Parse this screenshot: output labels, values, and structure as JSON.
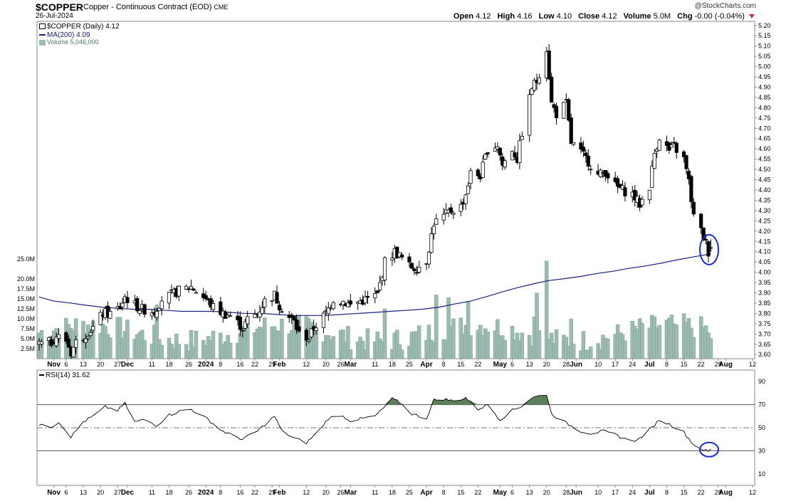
{
  "header": {
    "symbol": "$COPPER",
    "name": "Copper - Continuous Contract (EOD)",
    "exchange": "CME",
    "date": "26-Jul-2024",
    "brand": "@StockCharts.com",
    "open_label": "Open",
    "open": "4.12",
    "high_label": "High",
    "high": "4.16",
    "low_label": "Low",
    "low": "4.10",
    "close_label": "Close",
    "close": "4.12",
    "volume_label": "Volume",
    "volume": "5.0M",
    "chg_label": "Chg",
    "chg": "-0.00 (-0.04%)"
  },
  "legend": {
    "price": "$COPPER (Daily) 4.12",
    "ma": "MA(200) 4.09",
    "volume": "Volume 5,046,000",
    "rsi": "RSI(14) 31.62"
  },
  "colors": {
    "candle": "#000000",
    "ma": "#1a237e",
    "volume": "#9dbcb0",
    "volume_edge": "#6f8f83",
    "rsi_line": "#000000",
    "rsi_fill": "#5d7f5c",
    "highlight": "#1a2bd6"
  },
  "chart_data": [
    {
      "type": "candlestick",
      "title": "$COPPER (Daily) 4.12",
      "x_tick_labels": [
        "Nov",
        "6",
        "13",
        "20",
        "27",
        "Dec",
        "11",
        "18",
        "26",
        "2024",
        "8",
        "16",
        "22",
        "29",
        "Feb",
        "12",
        "20",
        "26",
        "Mar",
        "11",
        "18",
        "25",
        "Apr",
        "8",
        "15",
        "22",
        "May",
        "6",
        "13",
        "20",
        "28",
        "Jun",
        "10",
        "17",
        "24",
        "Jul",
        "8",
        "15",
        "22",
        "29",
        "Aug",
        "12"
      ],
      "y_ticks": [
        "5.20",
        "5.15",
        "5.10",
        "5.05",
        "5.00",
        "4.95",
        "4.90",
        "4.85",
        "4.80",
        "4.75",
        "4.70",
        "4.65",
        "4.60",
        "4.55",
        "4.50",
        "4.45",
        "4.40",
        "4.35",
        "4.30",
        "4.25",
        "4.20",
        "4.15",
        "4.10",
        "4.05",
        "4.00",
        "3.95",
        "3.90",
        "3.85",
        "3.80",
        "3.75",
        "3.70",
        "3.65",
        "3.60"
      ],
      "ylim": [
        3.58,
        5.22
      ],
      "series": [
        {
          "name": "MA(200)",
          "x_start": "2023-10-26",
          "x_end": "2024-07-26",
          "values": [
            3.88,
            3.86,
            3.85,
            3.84,
            3.83,
            3.825,
            3.82,
            3.82,
            3.815,
            3.81,
            3.81,
            3.81,
            3.805,
            3.8,
            3.8,
            3.795,
            3.79,
            3.79,
            3.79,
            3.795,
            3.8,
            3.805,
            3.81,
            3.815,
            3.82,
            3.83,
            3.845,
            3.86,
            3.88,
            3.905,
            3.925,
            3.945,
            3.96,
            3.97,
            3.98,
            3.995,
            4.005,
            4.02,
            4.03,
            4.045,
            4.06,
            4.075,
            4.09
          ]
        }
      ],
      "close_anchors": [
        [
          "2023-10-26",
          3.65
        ],
        [
          "2023-10-31",
          3.66
        ],
        [
          "2023-11-02",
          3.69
        ],
        [
          "2023-11-06",
          3.67
        ],
        [
          "2023-11-08",
          3.61
        ],
        [
          "2023-11-10",
          3.66
        ],
        [
          "2023-11-14",
          3.7
        ],
        [
          "2023-11-17",
          3.73
        ],
        [
          "2023-11-21",
          3.8
        ],
        [
          "2023-11-24",
          3.8
        ],
        [
          "2023-11-28",
          3.83
        ],
        [
          "2023-11-30",
          3.88
        ],
        [
          "2023-12-04",
          3.84
        ],
        [
          "2023-12-07",
          3.82
        ],
        [
          "2023-12-12",
          3.81
        ],
        [
          "2023-12-15",
          3.87
        ],
        [
          "2023-12-19",
          3.89
        ],
        [
          "2023-12-22",
          3.91
        ],
        [
          "2023-12-27",
          3.93
        ],
        [
          "2024-01-02",
          3.87
        ],
        [
          "2024-01-05",
          3.83
        ],
        [
          "2024-01-09",
          3.8
        ],
        [
          "2024-01-12",
          3.79
        ],
        [
          "2024-01-17",
          3.73
        ],
        [
          "2024-01-19",
          3.77
        ],
        [
          "2024-01-23",
          3.8
        ],
        [
          "2024-01-26",
          3.86
        ],
        [
          "2024-01-30",
          3.89
        ],
        [
          "2024-02-01",
          3.84
        ],
        [
          "2024-02-05",
          3.78
        ],
        [
          "2024-02-07",
          3.76
        ],
        [
          "2024-02-09",
          3.7
        ],
        [
          "2024-02-13",
          3.68
        ],
        [
          "2024-02-15",
          3.73
        ],
        [
          "2024-02-20",
          3.8
        ],
        [
          "2024-02-23",
          3.87
        ],
        [
          "2024-02-27",
          3.86
        ],
        [
          "2024-03-01",
          3.84
        ],
        [
          "2024-03-05",
          3.86
        ],
        [
          "2024-03-08",
          3.87
        ],
        [
          "2024-03-12",
          3.89
        ],
        [
          "2024-03-15",
          4.05
        ],
        [
          "2024-03-19",
          4.1
        ],
        [
          "2024-03-21",
          4.08
        ],
        [
          "2024-03-25",
          4.03
        ],
        [
          "2024-03-28",
          4.02
        ],
        [
          "2024-04-01",
          4.06
        ],
        [
          "2024-04-04",
          4.24
        ],
        [
          "2024-04-08",
          4.27
        ],
        [
          "2024-04-11",
          4.3
        ],
        [
          "2024-04-15",
          4.32
        ],
        [
          "2024-04-17",
          4.38
        ],
        [
          "2024-04-19",
          4.48
        ],
        [
          "2024-04-23",
          4.47
        ],
        [
          "2024-04-26",
          4.6
        ],
        [
          "2024-04-30",
          4.62
        ],
        [
          "2024-05-02",
          4.52
        ],
        [
          "2024-05-06",
          4.6
        ],
        [
          "2024-05-08",
          4.55
        ],
        [
          "2024-05-10",
          4.68
        ],
        [
          "2024-05-14",
          4.9
        ],
        [
          "2024-05-16",
          4.93
        ],
        [
          "2024-05-20",
          5.09
        ],
        [
          "2024-05-22",
          4.82
        ],
        [
          "2024-05-24",
          4.77
        ],
        [
          "2024-05-28",
          4.82
        ],
        [
          "2024-05-30",
          4.63
        ],
        [
          "2024-06-03",
          4.58
        ],
        [
          "2024-06-06",
          4.54
        ],
        [
          "2024-06-10",
          4.47
        ],
        [
          "2024-06-13",
          4.49
        ],
        [
          "2024-06-17",
          4.42
        ],
        [
          "2024-06-20",
          4.4
        ],
        [
          "2024-06-24",
          4.38
        ],
        [
          "2024-06-27",
          4.33
        ],
        [
          "2024-07-01",
          4.42
        ],
        [
          "2024-07-03",
          4.58
        ],
        [
          "2024-07-05",
          4.66
        ],
        [
          "2024-07-09",
          4.59
        ],
        [
          "2024-07-11",
          4.61
        ],
        [
          "2024-07-15",
          4.55
        ],
        [
          "2024-07-17",
          4.44
        ],
        [
          "2024-07-19",
          4.27
        ],
        [
          "2024-07-22",
          4.2
        ],
        [
          "2024-07-24",
          4.14
        ],
        [
          "2024-07-25",
          4.1
        ],
        [
          "2024-07-26",
          4.12
        ]
      ]
    },
    {
      "type": "bar",
      "title": "Volume 5,046,000",
      "y_ticks": [
        "25.0M",
        "20.0M",
        "17.5M",
        "15.0M",
        "12.5M",
        "10.0M",
        "7.5M",
        "5.0M",
        "2.5M"
      ],
      "ylim": [
        0,
        27.5
      ],
      "units": "M",
      "last": 5.046,
      "spikes": [
        [
          "2023-12-13",
          13.5
        ],
        [
          "2024-03-15",
          12.5
        ],
        [
          "2024-04-05",
          16.0
        ],
        [
          "2024-04-10",
          15.3
        ],
        [
          "2024-04-18",
          14.3
        ],
        [
          "2024-05-15",
          10.5
        ],
        [
          "2024-05-16",
          16.5
        ],
        [
          "2024-05-20",
          24.5
        ],
        [
          "2024-05-30",
          10.0
        ],
        [
          "2024-07-12",
          8.5
        ]
      ]
    },
    {
      "type": "line",
      "title": "RSI(14) 31.62",
      "y_ticks": [
        "90",
        "70",
        "50",
        "30",
        "10"
      ],
      "ylim": [
        0,
        100
      ],
      "reference_lines": [
        70,
        50,
        30
      ],
      "last": 31.62,
      "anchors": [
        [
          "2023-10-26",
          52
        ],
        [
          "2023-10-31",
          51
        ],
        [
          "2023-11-03",
          55
        ],
        [
          "2023-11-08",
          42
        ],
        [
          "2023-11-13",
          55
        ],
        [
          "2023-11-17",
          60
        ],
        [
          "2023-11-22",
          68
        ],
        [
          "2023-11-27",
          65
        ],
        [
          "2023-11-30",
          71
        ],
        [
          "2023-12-04",
          55
        ],
        [
          "2023-12-08",
          57
        ],
        [
          "2023-12-13",
          52
        ],
        [
          "2023-12-18",
          61
        ],
        [
          "2023-12-22",
          64
        ],
        [
          "2023-12-27",
          66
        ],
        [
          "2024-01-03",
          57
        ],
        [
          "2024-01-08",
          48
        ],
        [
          "2024-01-12",
          44
        ],
        [
          "2024-01-17",
          40
        ],
        [
          "2024-01-23",
          47
        ],
        [
          "2024-01-30",
          60
        ],
        [
          "2024-02-02",
          47
        ],
        [
          "2024-02-07",
          41
        ],
        [
          "2024-02-12",
          37
        ],
        [
          "2024-02-16",
          45
        ],
        [
          "2024-02-21",
          58
        ],
        [
          "2024-02-26",
          61
        ],
        [
          "2024-03-01",
          56
        ],
        [
          "2024-03-06",
          58
        ],
        [
          "2024-03-11",
          60
        ],
        [
          "2024-03-14",
          66
        ],
        [
          "2024-03-18",
          75
        ],
        [
          "2024-03-21",
          72
        ],
        [
          "2024-03-26",
          62
        ],
        [
          "2024-04-01",
          58
        ],
        [
          "2024-04-04",
          74
        ],
        [
          "2024-04-08",
          75
        ],
        [
          "2024-04-12",
          73
        ],
        [
          "2024-04-17",
          76
        ],
        [
          "2024-04-22",
          66
        ],
        [
          "2024-04-26",
          70
        ],
        [
          "2024-05-01",
          57
        ],
        [
          "2024-05-06",
          65
        ],
        [
          "2024-05-10",
          69
        ],
        [
          "2024-05-14",
          76
        ],
        [
          "2024-05-20",
          79
        ],
        [
          "2024-05-22",
          62
        ],
        [
          "2024-05-28",
          54
        ],
        [
          "2024-06-03",
          47
        ],
        [
          "2024-06-07",
          45
        ],
        [
          "2024-06-12",
          47
        ],
        [
          "2024-06-17",
          44
        ],
        [
          "2024-06-21",
          40
        ],
        [
          "2024-06-26",
          39
        ],
        [
          "2024-07-02",
          50
        ],
        [
          "2024-07-05",
          57
        ],
        [
          "2024-07-10",
          52
        ],
        [
          "2024-07-15",
          46
        ],
        [
          "2024-07-19",
          35
        ],
        [
          "2024-07-23",
          31
        ],
        [
          "2024-07-25",
          29
        ],
        [
          "2024-07-26",
          31.62
        ]
      ]
    }
  ]
}
